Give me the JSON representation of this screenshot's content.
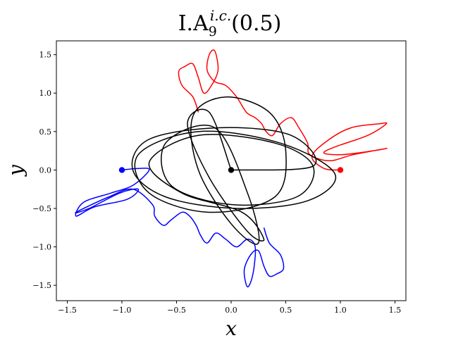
{
  "chart_data": {
    "type": "line",
    "title": {
      "main": "I.A",
      "subscript": "9",
      "superscript": "i.c.",
      "suffix": "(0.5)"
    },
    "xlabel": "x",
    "ylabel": "y",
    "xlim": [
      -1.6,
      1.6
    ],
    "ylim": [
      -1.7,
      1.68
    ],
    "x_ticks": [
      -1.5,
      -1.0,
      -0.5,
      0.0,
      0.5,
      1.0,
      1.5
    ],
    "x_tick_labels": [
      "−1.5",
      "−1.0",
      "−0.5",
      "0.0",
      "0.5",
      "1.0",
      "1.5"
    ],
    "y_ticks": [
      -1.5,
      -1.0,
      -0.5,
      0.0,
      0.5,
      1.0,
      1.5
    ],
    "y_tick_labels": [
      "−1.5",
      "−1.0",
      "−0.5",
      "0.0",
      "0.5",
      "1.0",
      "1.5"
    ],
    "grid": false,
    "series": [
      {
        "color": "#ff0000",
        "start": [
          1.0,
          0.0
        ],
        "x": [
          1.0,
          0.85,
          0.74,
          0.9,
          1.1,
          1.35,
          1.42,
          1.25,
          0.95,
          0.85,
          1.02,
          1.3,
          1.42,
          1.12,
          0.9,
          0.72,
          0.7,
          0.62,
          0.55,
          0.45,
          0.38,
          0.32,
          0.28,
          0.22,
          0.14,
          0.05,
          -0.05,
          -0.15,
          -0.22,
          -0.2,
          -0.15,
          -0.12,
          -0.18,
          -0.25,
          -0.3,
          -0.35,
          -0.42,
          -0.48,
          -0.45,
          -0.35,
          -0.3
        ],
        "y": [
          0.0,
          0.02,
          0.18,
          0.4,
          0.55,
          0.6,
          0.6,
          0.45,
          0.3,
          0.22,
          0.2,
          0.25,
          0.28,
          0.2,
          0.12,
          0.2,
          0.35,
          0.55,
          0.68,
          0.6,
          0.45,
          0.5,
          0.6,
          0.68,
          0.75,
          0.95,
          1.1,
          1.15,
          1.3,
          1.5,
          1.55,
          1.3,
          1.1,
          1.0,
          1.2,
          1.38,
          1.35,
          1.28,
          1.1,
          0.95,
          0.75
        ]
      },
      {
        "color": "#0000ff",
        "start": [
          -1.0,
          0.0
        ],
        "x": [
          -1.0,
          -0.85,
          -0.75,
          -0.9,
          -1.1,
          -1.35,
          -1.42,
          -1.25,
          -0.95,
          -0.85,
          -1.02,
          -1.3,
          -1.42,
          -1.12,
          -0.9,
          -0.72,
          -0.7,
          -0.62,
          -0.55,
          -0.45,
          -0.38,
          -0.32,
          -0.28,
          -0.22,
          -0.14,
          -0.05,
          0.05,
          0.15,
          0.22,
          0.2,
          0.15,
          0.12,
          0.18,
          0.25,
          0.3,
          0.35,
          0.42,
          0.48,
          0.45,
          0.35,
          0.3
        ],
        "y": [
          0.0,
          0.02,
          0.0,
          -0.2,
          -0.3,
          -0.42,
          -0.6,
          -0.48,
          -0.38,
          -0.25,
          -0.3,
          -0.5,
          -0.55,
          -0.35,
          -0.25,
          -0.45,
          -0.6,
          -0.72,
          -0.65,
          -0.55,
          -0.6,
          -0.72,
          -0.85,
          -0.95,
          -0.82,
          -0.9,
          -1.0,
          -0.9,
          -1.0,
          -1.35,
          -1.52,
          -1.3,
          -1.1,
          -1.05,
          -1.25,
          -1.38,
          -1.35,
          -1.28,
          -1.1,
          -0.95,
          -0.75
        ]
      },
      {
        "color": "#000000",
        "start": [
          0.0,
          0.0
        ],
        "x": [
          0.0,
          0.75,
          0.55,
          -0.1,
          -0.75,
          -0.9,
          -0.6,
          0.05,
          0.7,
          0.95,
          0.45,
          -0.3,
          -0.85,
          -0.75,
          -0.2,
          0.4,
          0.5,
          0.35,
          -0.05,
          -0.35,
          -0.3,
          0.0,
          0.25,
          0.15,
          -0.15,
          -0.6,
          -0.55,
          0.0,
          0.6,
          0.75,
          0.4,
          -0.3,
          -0.75,
          -0.45,
          0.1,
          0.3,
          0.15,
          -0.2,
          -0.4,
          -0.2,
          0.0
        ],
        "y": [
          0.0,
          0.05,
          0.45,
          0.55,
          0.4,
          0.0,
          -0.35,
          -0.5,
          -0.4,
          -0.05,
          0.35,
          0.5,
          0.2,
          -0.3,
          -0.55,
          -0.35,
          0.25,
          0.75,
          0.95,
          0.7,
          0.0,
          -0.7,
          -0.95,
          -0.3,
          0.55,
          0.35,
          -0.2,
          -0.45,
          -0.35,
          0.05,
          0.35,
          0.45,
          0.1,
          -0.3,
          -0.55,
          -0.9,
          -0.8,
          -0.1,
          0.6,
          0.75,
          0.0
        ]
      }
    ]
  }
}
